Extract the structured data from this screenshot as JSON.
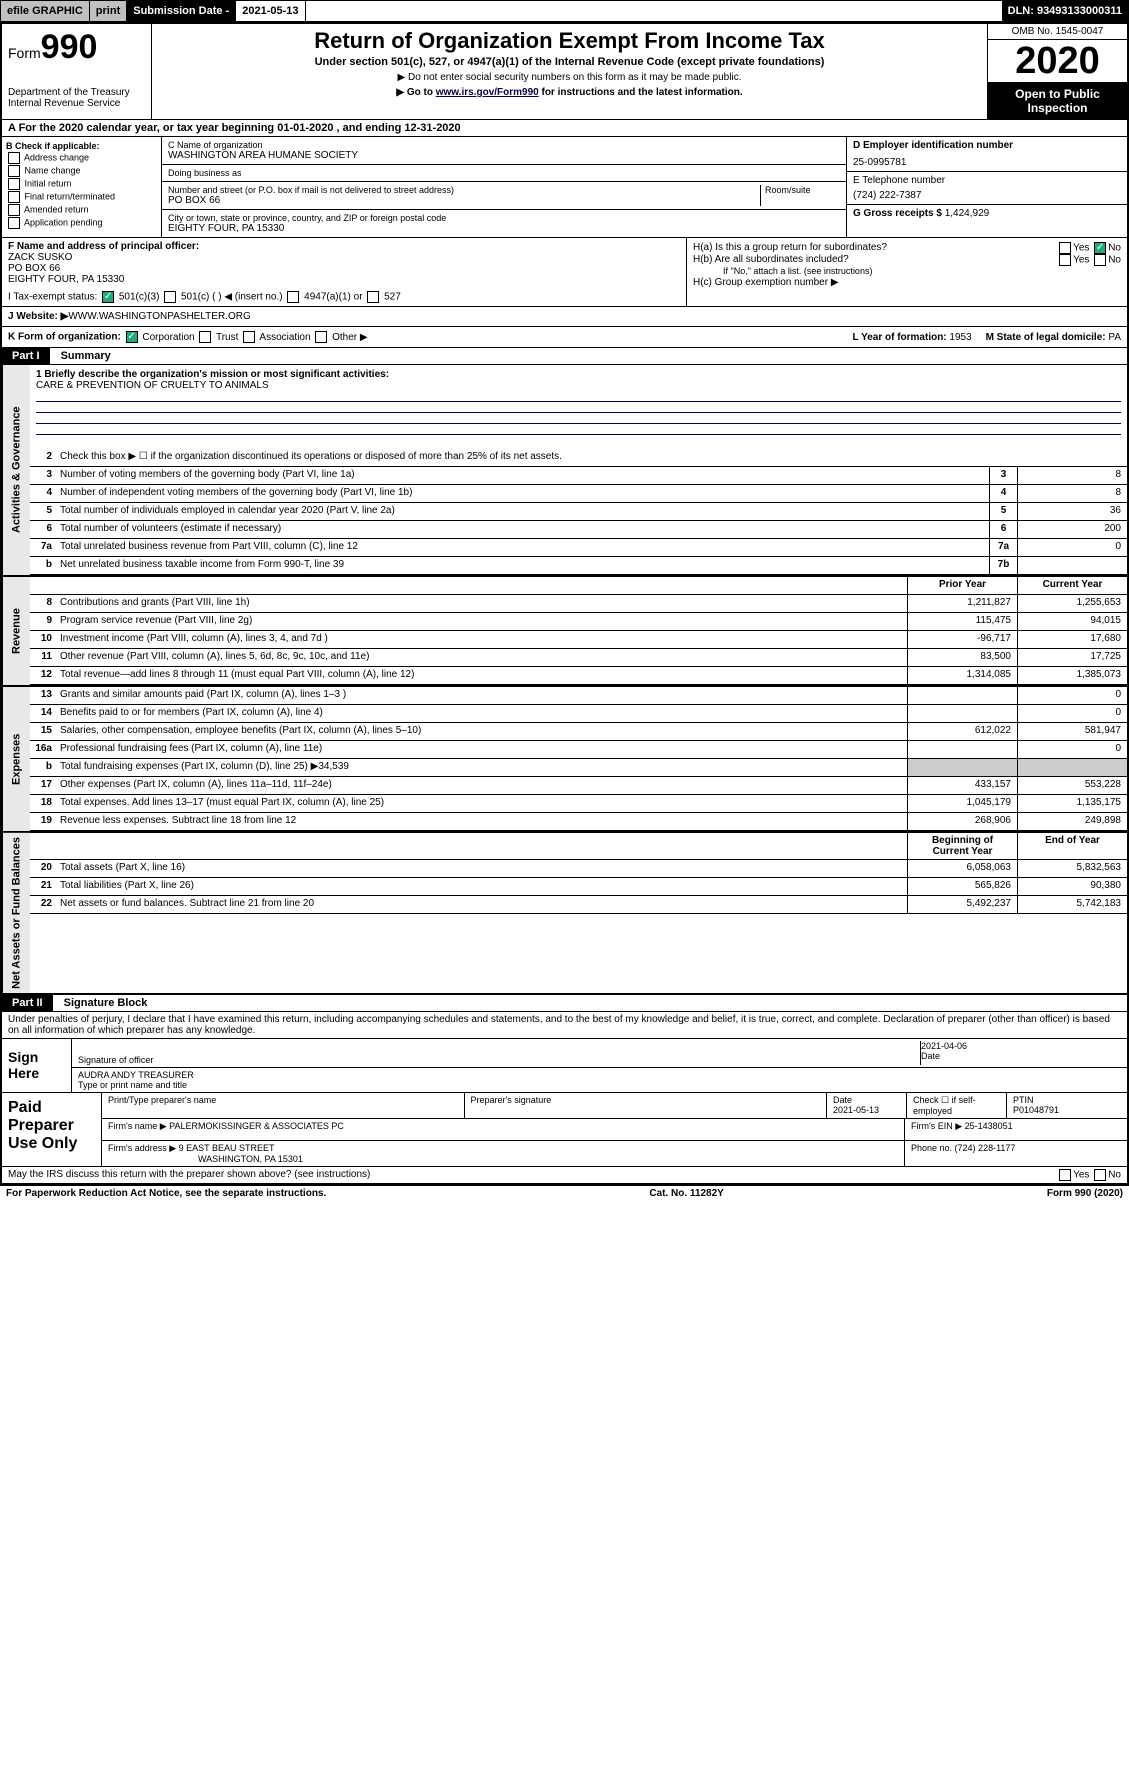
{
  "topbar": {
    "efile": "efile GRAPHIC",
    "print": "print",
    "sub_label": "Submission Date - ",
    "sub_date": "2021-05-13",
    "dln": "DLN: 93493133000311"
  },
  "header": {
    "form_prefix": "Form",
    "form_number": "990",
    "title": "Return of Organization Exempt From Income Tax",
    "sub1": "Under section 501(c), 527, or 4947(a)(1) of the Internal Revenue Code (except private foundations)",
    "sub2": "▶ Do not enter social security numbers on this form as it may be made public.",
    "sub3_prefix": "▶ Go to ",
    "sub3_link": "www.irs.gov/Form990",
    "sub3_suffix": " for instructions and the latest information.",
    "dept": "Department of the Treasury",
    "irs": "Internal Revenue Service",
    "omb": "OMB No. 1545-0047",
    "year": "2020",
    "open": "Open to Public Inspection"
  },
  "period": {
    "text_a": "A For the 2020 calendar year, or tax year beginning ",
    "begin": "01-01-2020",
    "text_b": " , and ending ",
    "end": "12-31-2020"
  },
  "blockB": {
    "header": "B Check if applicable:",
    "opts": [
      "Address change",
      "Name change",
      "Initial return",
      "Final return/terminated",
      "Amended return",
      "Application pending"
    ]
  },
  "blockC": {
    "name_lbl": "C Name of organization",
    "name": "WASHINGTON AREA HUMANE SOCIETY",
    "dba_lbl": "Doing business as",
    "dba": "",
    "addr_lbl": "Number and street (or P.O. box if mail is not delivered to street address)",
    "room_lbl": "Room/suite",
    "addr": "PO BOX 66",
    "city_lbl": "City or town, state or province, country, and ZIP or foreign postal code",
    "city": "EIGHTY FOUR, PA  15330"
  },
  "blockD": {
    "ein_lbl": "D Employer identification number",
    "ein": "25-0995781",
    "tel_lbl": "E Telephone number",
    "tel": "(724) 222-7387",
    "gross_lbl": "G Gross receipts $ ",
    "gross": "1,424,929"
  },
  "officer": {
    "lbl": "F Name and address of principal officer:",
    "name": "ZACK SUSKO",
    "addr1": "PO BOX 66",
    "addr2": "EIGHTY FOUR, PA  15330",
    "h_a": "H(a)  Is this a group return for subordinates?",
    "h_b": "H(b)  Are all subordinates included?",
    "h_note": "If \"No,\" attach a list. (see instructions)",
    "h_c": "H(c)  Group exemption number ▶"
  },
  "te": {
    "lbl": "I     Tax-exempt status:",
    "o1": "501(c)(3)",
    "o2": "501(c) (   ) ◀ (insert no.)",
    "o3": "4947(a)(1) or",
    "o4": "527"
  },
  "web": {
    "lbl": "J     Website: ▶  ",
    "val": "WWW.WASHINGTONPASHELTER.ORG"
  },
  "k": {
    "lbl": "K Form of organization:",
    "opts": [
      "Corporation",
      "Trust",
      "Association",
      "Other ▶"
    ],
    "checked": 0,
    "year_lbl": "L Year of formation: ",
    "year": "1953",
    "state_lbl": "M State of legal domicile: ",
    "state": "PA"
  },
  "part1": {
    "hdr": "Part I",
    "title": "Summary"
  },
  "mission": {
    "lbl": "1   Briefly describe the organization's mission or most significant activities:",
    "text": "CARE & PREVENTION OF CRUELTY TO ANIMALS"
  },
  "summary": {
    "groups": [
      {
        "tab": "Activities & Governance",
        "rows": [
          {
            "n": "2",
            "t": "Check this box ▶ ☐  if the organization discontinued its operations or disposed of more than 25% of its net assets."
          },
          {
            "n": "3",
            "t": "Number of voting members of the governing body (Part VI, line 1a)",
            "box": "3",
            "v2": "8"
          },
          {
            "n": "4",
            "t": "Number of independent voting members of the governing body (Part VI, line 1b)",
            "box": "4",
            "v2": "8"
          },
          {
            "n": "5",
            "t": "Total number of individuals employed in calendar year 2020 (Part V, line 2a)",
            "box": "5",
            "v2": "36"
          },
          {
            "n": "6",
            "t": "Total number of volunteers (estimate if necessary)",
            "box": "6",
            "v2": "200"
          },
          {
            "n": "7a",
            "t": "Total unrelated business revenue from Part VIII, column (C), line 12",
            "box": "7a",
            "v2": "0"
          },
          {
            "n": "b",
            "t": "Net unrelated business taxable income from Form 990-T, line 39",
            "box": "7b",
            "v2": ""
          }
        ]
      },
      {
        "tab": "Revenue",
        "hdr": {
          "v1": "Prior Year",
          "v2": "Current Year"
        },
        "rows": [
          {
            "n": "8",
            "t": "Contributions and grants (Part VIII, line 1h)",
            "v1": "1,211,827",
            "v2": "1,255,653"
          },
          {
            "n": "9",
            "t": "Program service revenue (Part VIII, line 2g)",
            "v1": "115,475",
            "v2": "94,015"
          },
          {
            "n": "10",
            "t": "Investment income (Part VIII, column (A), lines 3, 4, and 7d )",
            "v1": "-96,717",
            "v2": "17,680"
          },
          {
            "n": "11",
            "t": "Other revenue (Part VIII, column (A), lines 5, 6d, 8c, 9c, 10c, and 11e)",
            "v1": "83,500",
            "v2": "17,725"
          },
          {
            "n": "12",
            "t": "Total revenue—add lines 8 through 11 (must equal Part VIII, column (A), line 12)",
            "v1": "1,314,085",
            "v2": "1,385,073"
          }
        ]
      },
      {
        "tab": "Expenses",
        "rows": [
          {
            "n": "13",
            "t": "Grants and similar amounts paid (Part IX, column (A), lines 1–3 )",
            "v1": "",
            "v2": "0"
          },
          {
            "n": "14",
            "t": "Benefits paid to or for members (Part IX, column (A), line 4)",
            "v1": "",
            "v2": "0"
          },
          {
            "n": "15",
            "t": "Salaries, other compensation, employee benefits (Part IX, column (A), lines 5–10)",
            "v1": "612,022",
            "v2": "581,947"
          },
          {
            "n": "16a",
            "t": "Professional fundraising fees (Part IX, column (A), line 11e)",
            "v1": "",
            "v2": "0"
          },
          {
            "n": "b",
            "t": "Total fundraising expenses (Part IX, column (D), line 25) ▶34,539",
            "nofin": true
          },
          {
            "n": "17",
            "t": "Other expenses (Part IX, column (A), lines 11a–11d, 11f–24e)",
            "v1": "433,157",
            "v2": "553,228"
          },
          {
            "n": "18",
            "t": "Total expenses. Add lines 13–17 (must equal Part IX, column (A), line 25)",
            "v1": "1,045,179",
            "v2": "1,135,175"
          },
          {
            "n": "19",
            "t": "Revenue less expenses. Subtract line 18 from line 12",
            "v1": "268,906",
            "v2": "249,898"
          }
        ]
      },
      {
        "tab": "Net Assets or Fund Balances",
        "hdr": {
          "v1": "Beginning of Current Year",
          "v2": "End of Year"
        },
        "rows": [
          {
            "n": "20",
            "t": "Total assets (Part X, line 16)",
            "v1": "6,058,063",
            "v2": "5,832,563"
          },
          {
            "n": "21",
            "t": "Total liabilities (Part X, line 26)",
            "v1": "565,826",
            "v2": "90,380"
          },
          {
            "n": "22",
            "t": "Net assets or fund balances. Subtract line 21 from line 20",
            "v1": "5,492,237",
            "v2": "5,742,183"
          }
        ]
      }
    ]
  },
  "part2": {
    "hdr": "Part II",
    "title": "Signature Block",
    "decl": "Under penalties of perjury, I declare that I have examined this return, including accompanying schedules and statements, and to the best of my knowledge and belief, it is true, correct, and complete. Declaration of preparer (other than officer) is based on all information of which preparer has any knowledge."
  },
  "sign": {
    "label": "Sign Here",
    "sig_lbl": "Signature of officer",
    "date": "2021-04-06",
    "date_lbl": "Date",
    "name": "AUDRA ANDY TREASURER",
    "name_lbl": "Type or print name and title"
  },
  "paid": {
    "label": "Paid Preparer Use Only",
    "c1": "Print/Type preparer's name",
    "c2": "Preparer's signature",
    "c3": "Date",
    "c3v": "2021-05-13",
    "c4": "Check ☐ if self-employed",
    "c5": "PTIN",
    "c5v": "P01048791",
    "firm_lbl": "Firm's name      ▶ ",
    "firm": "PALERMOKISSINGER & ASSOCIATES PC",
    "ein_lbl": "Firm's EIN ▶ ",
    "ein": "25-1438051",
    "addr_lbl": "Firm's address ▶ ",
    "addr1": "9 EAST BEAU STREET",
    "addr2": "WASHINGTON, PA  15301",
    "phone_lbl": "Phone no. ",
    "phone": "(724) 228-1177"
  },
  "footer": {
    "discuss": "May the IRS discuss this return with the preparer shown above? (see instructions)",
    "yes": "Yes",
    "no": "No",
    "pra": "For Paperwork Reduction Act Notice, see the separate instructions.",
    "cat": "Cat. No. 11282Y",
    "form": "Form 990 (2020)"
  }
}
